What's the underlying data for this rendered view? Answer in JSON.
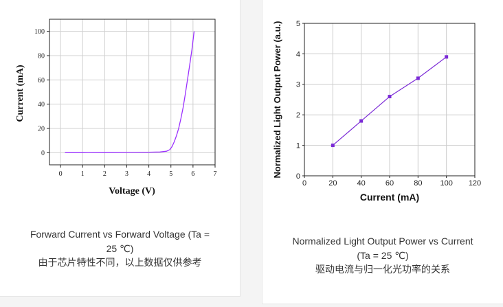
{
  "cards": [
    {
      "caption_line1": "Forward Current vs Forward Voltage (Ta =",
      "caption_line2": "25 ℃)",
      "caption_line3": "由于芯片特性不同，以上数据仅供参考"
    },
    {
      "caption_line1": "Normalized Light Output Power vs Current",
      "caption_line2": "(Ta = 25 ℃)",
      "caption_line3": "驱动电流与归一化光功率的关系"
    }
  ],
  "chart_data": [
    {
      "type": "line",
      "title": "",
      "xlabel": "Voltage (V)",
      "ylabel": "Current (mA)",
      "xlim": [
        -0.5,
        7
      ],
      "ylim": [
        -10,
        110
      ],
      "xticks": [
        0,
        1,
        2,
        3,
        4,
        5,
        6,
        7
      ],
      "yticks": [
        0,
        20,
        40,
        60,
        80,
        100
      ],
      "grid": true,
      "line_color": "#9b30ff",
      "series": [
        {
          "name": "",
          "x": [
            0.2,
            1.0,
            2.0,
            3.0,
            4.0,
            4.5,
            4.8,
            4.95,
            5.05,
            5.15,
            5.25,
            5.35,
            5.45,
            5.55,
            5.65,
            5.75,
            5.85,
            5.95,
            6.05
          ],
          "y": [
            0,
            0,
            0.1,
            0.2,
            0.4,
            0.6,
            1.2,
            2.5,
            5,
            9,
            14,
            20,
            28,
            37,
            48,
            60,
            72,
            85,
            100
          ]
        }
      ]
    },
    {
      "type": "line",
      "title": "",
      "xlabel": "Current (mA)",
      "ylabel": "Normalized Light Output Power (a.u.)",
      "xlim": [
        0,
        120
      ],
      "ylim": [
        0,
        5
      ],
      "xticks": [
        0,
        20,
        40,
        60,
        80,
        100,
        120
      ],
      "yticks": [
        0,
        1,
        2,
        3,
        4,
        5
      ],
      "grid": true,
      "line_color": "#7b2ad6",
      "series": [
        {
          "name": "",
          "x": [
            20,
            40,
            60,
            80,
            100
          ],
          "y": [
            1.0,
            1.8,
            2.6,
            3.2,
            3.9
          ]
        }
      ]
    }
  ]
}
